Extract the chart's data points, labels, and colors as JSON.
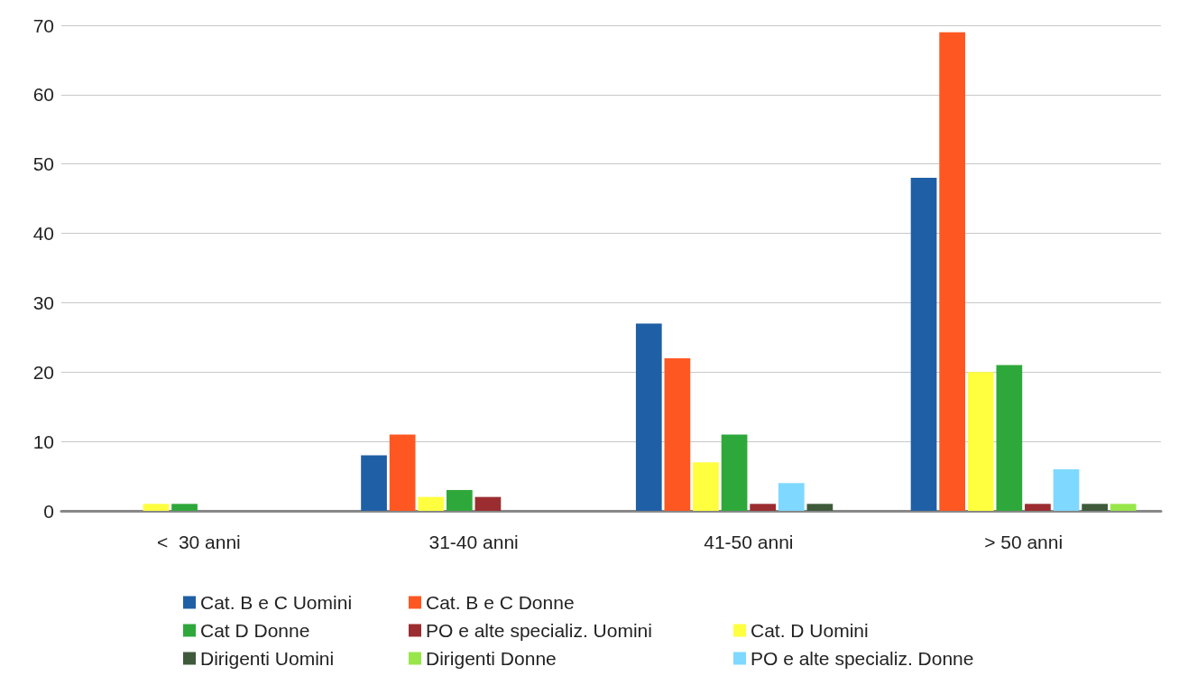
{
  "chart_data": {
    "type": "bar",
    "categories": [
      "<  30 anni",
      "31-40 anni",
      "41-50 anni",
      "> 50 anni"
    ],
    "series": [
      {
        "name": "Cat. B e C Uomini",
        "color": "#1f5fa5",
        "values": [
          0,
          8,
          27,
          48
        ]
      },
      {
        "name": "Cat. B e C Donne",
        "color": "#ff5722",
        "values": [
          0,
          11,
          22,
          69
        ]
      },
      {
        "name": "Cat. D Uomini",
        "color": "#ffff40",
        "values": [
          1,
          2,
          7,
          20
        ]
      },
      {
        "name": "Cat D Donne",
        "color": "#2ea83a",
        "values": [
          1,
          3,
          11,
          21
        ]
      },
      {
        "name": "PO e alte specializ. Uomini",
        "color": "#9b2d30",
        "values": [
          0,
          2,
          1,
          1
        ]
      },
      {
        "name": "PO e alte specializ. Donne",
        "color": "#7fd8ff",
        "values": [
          0,
          0,
          4,
          6
        ]
      },
      {
        "name": "Dirigenti Uomini",
        "color": "#3e5a3a",
        "values": [
          0,
          0,
          1,
          1
        ]
      },
      {
        "name": "Dirigenti Donne",
        "color": "#99e64a",
        "values": [
          0,
          0,
          0,
          1
        ]
      }
    ],
    "ylim": [
      0,
      70
    ],
    "yticks": [
      0,
      10,
      20,
      30,
      40,
      50,
      60,
      70
    ],
    "grid": "y",
    "legend": "bottom"
  }
}
